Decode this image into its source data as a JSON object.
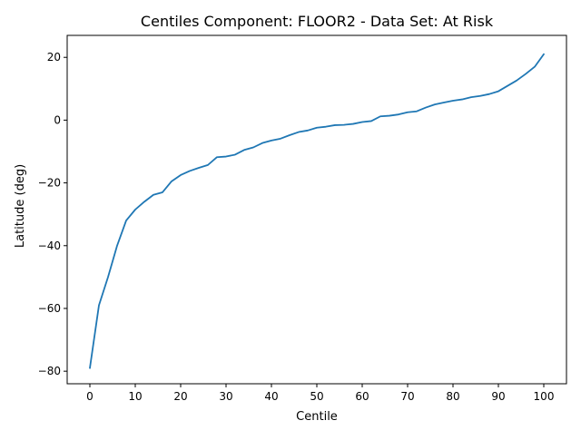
{
  "chart_data": {
    "type": "line",
    "title": "Centiles Component: FLOOR2 - Data Set: At Risk",
    "xlabel": "Centile",
    "ylabel": "Latitude (deg)",
    "xlim": [
      -5,
      105
    ],
    "ylim": [
      -84,
      27
    ],
    "xticks": [
      0,
      10,
      20,
      30,
      40,
      50,
      60,
      70,
      80,
      90,
      100
    ],
    "yticks": [
      -80,
      -60,
      -40,
      -20,
      0,
      20
    ],
    "xtick_labels": [
      "0",
      "10",
      "20",
      "30",
      "40",
      "50",
      "60",
      "70",
      "80",
      "90",
      "100"
    ],
    "ytick_labels": [
      "−80",
      "−60",
      "−40",
      "−20",
      "0",
      "20"
    ],
    "grid": false,
    "line_color": "#1f77b4",
    "series": [
      {
        "x": [
          0,
          2,
          4,
          6,
          8,
          10,
          12,
          14,
          16,
          18,
          20,
          22,
          24,
          26,
          28,
          30,
          32,
          34,
          36,
          38,
          40,
          42,
          44,
          46,
          48,
          50,
          52,
          54,
          56,
          58,
          60,
          62,
          64,
          66,
          68,
          70,
          72,
          74,
          76,
          78,
          80,
          82,
          84,
          86,
          88,
          90,
          92,
          94,
          96,
          98,
          100
        ],
        "values": [
          -79,
          -59,
          -50,
          -40,
          -32,
          -28.5,
          -26,
          -23.8,
          -23,
          -19.5,
          -17.5,
          -16.2,
          -15.2,
          -14.3,
          -11.8,
          -11.6,
          -11,
          -9.5,
          -8.7,
          -7.3,
          -6.5,
          -5.9,
          -4.8,
          -3.8,
          -3.3,
          -2.4,
          -2.1,
          -1.6,
          -1.5,
          -1.2,
          -0.6,
          -0.3,
          1.2,
          1.4,
          1.8,
          2.5,
          2.8,
          4,
          5,
          5.6,
          6.2,
          6.6,
          7.3,
          7.7,
          8.3,
          9.2,
          10.9,
          12.6,
          14.7,
          17,
          21
        ]
      }
    ]
  }
}
